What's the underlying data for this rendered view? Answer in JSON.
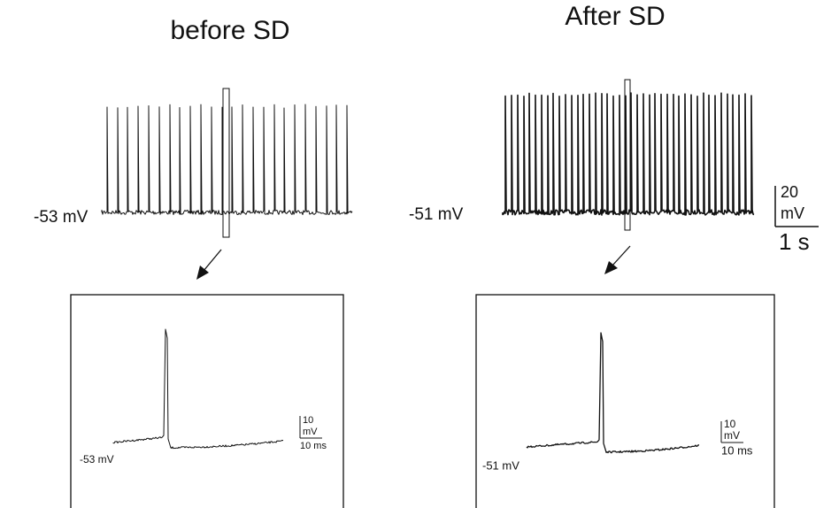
{
  "panels": [
    {
      "title": "before SD",
      "resting_label": "-53 mV",
      "inset": {
        "resting_label": "-53 mV",
        "scale_y": "10",
        "scale_y_unit": "mV",
        "scale_x": "10 ms"
      }
    },
    {
      "title": "After SD",
      "resting_label": "-51 mV",
      "inset": {
        "resting_label": "-51 mV",
        "scale_y": "10",
        "scale_y_unit": "mV",
        "scale_x": "10 ms"
      }
    }
  ],
  "scale_bar": {
    "y": "20",
    "y_unit": "mV",
    "x": "1 s"
  }
}
